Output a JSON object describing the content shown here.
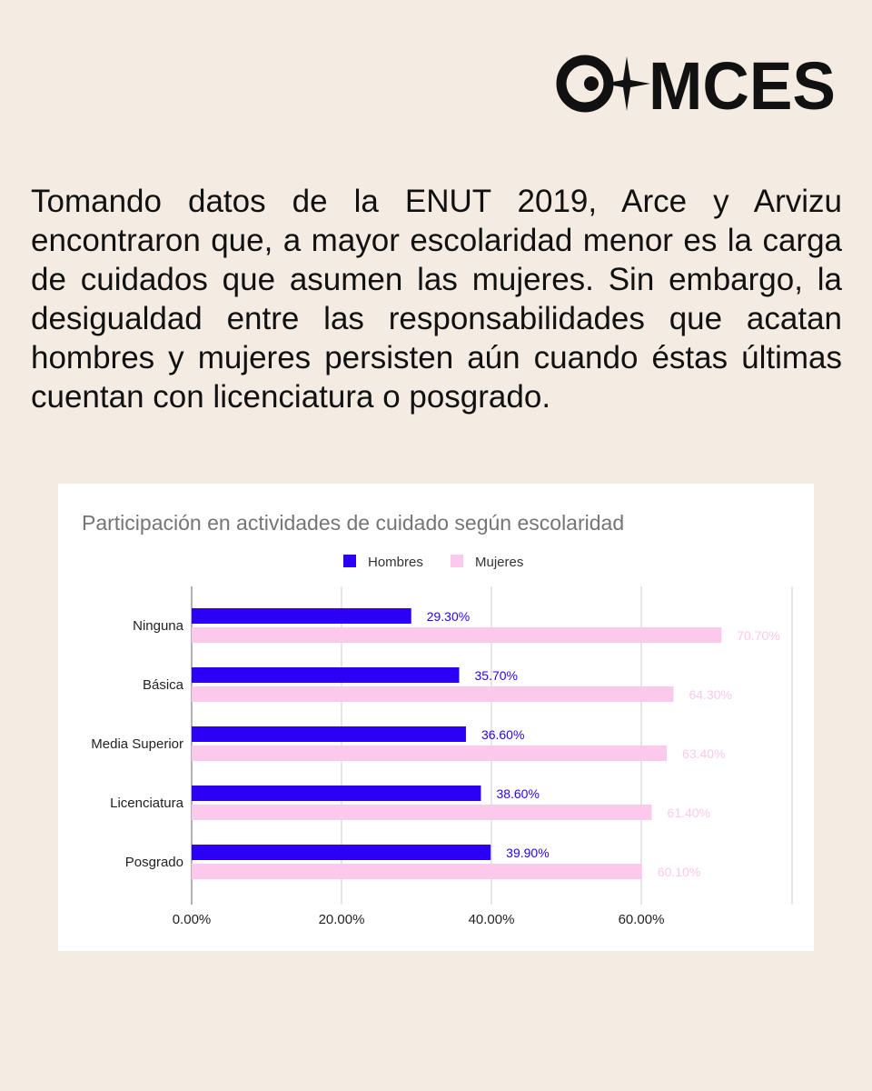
{
  "brand": {
    "logo_text": "MCES",
    "colors": {
      "ink": "#111111",
      "background": "#f4ece2"
    }
  },
  "intro": {
    "text": "Tomando datos de la ENUT 2019, Arce y Arvizu encontraron que, a mayor escolaridad menor es la carga de cuidados que asumen las mujeres. Sin embargo, la desigualdad entre las responsabilidades que acatan hombres y mujeres persisten aún cuando éstas últimas cuentan con licenciatura o posgrado."
  },
  "chart_data": {
    "type": "bar",
    "orientation": "horizontal",
    "title": "Participación en actividades de cuidado según escolaridad",
    "xlabel": "",
    "ylabel": "",
    "categories": [
      "Ninguna",
      "Básica",
      "Media Superior",
      "Licenciatura",
      "Posgrado"
    ],
    "series": [
      {
        "name": "Hombres",
        "color": "#2b00f5",
        "values": [
          29.3,
          35.7,
          36.6,
          38.6,
          39.9
        ],
        "labels": [
          "29.30%",
          "35.70%",
          "36.60%",
          "38.60%",
          "39.90%"
        ]
      },
      {
        "name": "Mujeres",
        "color": "#fbc9ec",
        "values": [
          70.7,
          64.3,
          63.4,
          61.4,
          60.1
        ],
        "labels": [
          "70.70%",
          "64.30%",
          "63.40%",
          "61.40%",
          "60.10%"
        ]
      }
    ],
    "xlim": [
      0,
      80
    ],
    "xticks": [
      0,
      20,
      40,
      60
    ],
    "xtick_labels": [
      "0.00%",
      "20.00%",
      "40.00%",
      "60.00%"
    ],
    "grid": true,
    "legend_position": "top"
  }
}
